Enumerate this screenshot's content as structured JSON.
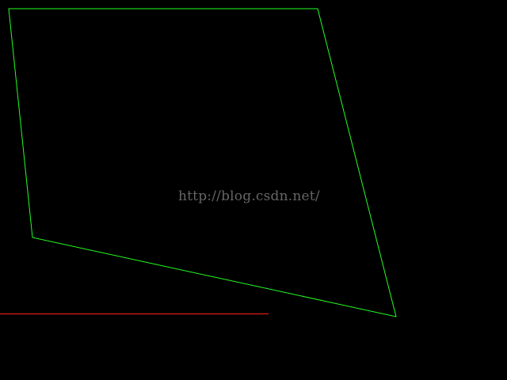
{
  "watermark": {
    "text": "http://blog.csdn.net/",
    "color": "#b8b8b8"
  },
  "colors": {
    "background": "#000000",
    "polygon_stroke": "#22ff22",
    "line_stroke": "#ff2020"
  }
}
